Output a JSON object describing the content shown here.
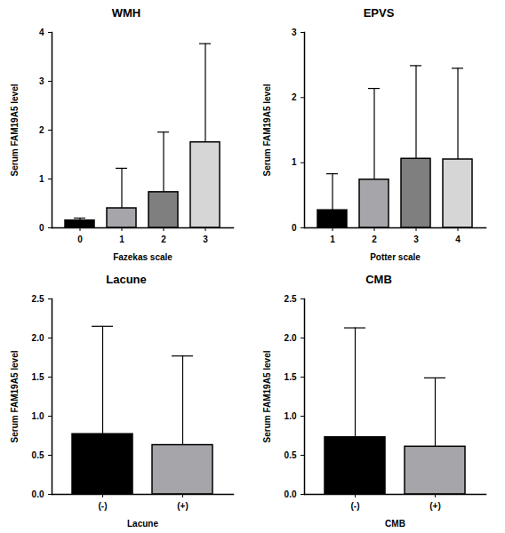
{
  "chart_data": [
    {
      "type": "bar",
      "title": "WMH",
      "x_label": "Fazekas scale",
      "y_label": "Serum FAM19A5 level",
      "categories": [
        "0",
        "1",
        "2",
        "3"
      ],
      "values": [
        0.15,
        0.4,
        0.73,
        1.75
      ],
      "errors": [
        0.05,
        0.82,
        1.23,
        2.02
      ],
      "colors": [
        "#000000",
        "#a6a6aa",
        "#7f7f7f",
        "#d6d6d6"
      ],
      "ylim": [
        0,
        4
      ],
      "yticks": [
        0,
        1,
        2,
        3,
        4
      ]
    },
    {
      "type": "bar",
      "title": "EPVS",
      "x_label": "Potter scale",
      "y_label": "Serum FAM19A5 level",
      "categories": [
        "1",
        "2",
        "3",
        "4"
      ],
      "values": [
        0.27,
        0.74,
        1.06,
        1.05
      ],
      "errors": [
        0.56,
        1.4,
        1.43,
        1.4
      ],
      "colors": [
        "#000000",
        "#a6a6aa",
        "#7f7f7f",
        "#d6d6d6"
      ],
      "ylim": [
        0,
        3
      ],
      "yticks": [
        0,
        1,
        2,
        3
      ]
    },
    {
      "type": "bar",
      "title": "Lacune",
      "x_label": "Lacune",
      "y_label": "Serum FAM19A5 level",
      "categories": [
        "(-)",
        "(+)"
      ],
      "values": [
        0.77,
        0.63
      ],
      "errors": [
        1.38,
        1.14
      ],
      "colors": [
        "#000000",
        "#a6a6aa"
      ],
      "ylim": [
        0,
        2.5
      ],
      "yticks": [
        {
          "value": 0,
          "label": "0.0"
        },
        0.5,
        {
          "value": 1,
          "label": "1.0"
        },
        1.5,
        {
          "value": 2,
          "label": "2.0"
        },
        2.5
      ]
    },
    {
      "type": "bar",
      "title": "CMB",
      "x_label": "CMB",
      "y_label": "Serum FAM19A5 level",
      "categories": [
        "(-)",
        "(+)"
      ],
      "values": [
        0.73,
        0.61
      ],
      "errors": [
        1.4,
        0.88
      ],
      "colors": [
        "#000000",
        "#a6a6aa"
      ],
      "ylim": [
        0,
        2.5
      ],
      "yticks": [
        {
          "value": 0,
          "label": "0.0"
        },
        0.5,
        {
          "value": 1,
          "label": "1.0"
        },
        1.5,
        {
          "value": 2,
          "label": "2.0"
        },
        2.5
      ]
    }
  ]
}
